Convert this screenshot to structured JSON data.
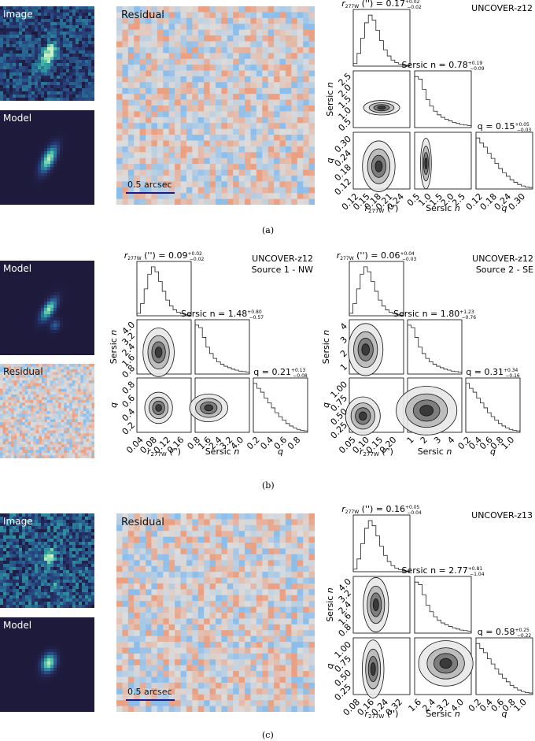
{
  "panels": [
    {
      "id": "a",
      "caption": "(a)",
      "image_label": "Image",
      "model_label": "Model",
      "residual_label": "Residual",
      "scalebar_label": "0.5 arcsec",
      "corner": {
        "object": "UNCOVER-z12",
        "source": "",
        "params": [
          {
            "name": "r277w",
            "summary_main": "r",
            "summary_sub": "277W",
            "summary_unit": " ('') = 0.17",
            "summary_plus": "+0.02",
            "summary_minus": "−0.02",
            "axis_label": "r277W ('')",
            "ticks": [
              "0.12",
              "0.15",
              "0.18",
              "0.21",
              "0.24"
            ]
          },
          {
            "name": "sersic",
            "summary_main": "Sersic n = 0.78",
            "summary_plus": "+0.19",
            "summary_minus": "−0.09",
            "axis_label": "Sersic n",
            "ticks": [
              "0.5",
              "1.0",
              "1.5",
              "2.0",
              "2.5"
            ]
          },
          {
            "name": "q",
            "summary_main": "q = 0.15",
            "summary_plus": "+0.05",
            "summary_minus": "−0.03",
            "axis_label": "q",
            "ticks": [
              "0.12",
              "0.18",
              "0.24",
              "0.30"
            ]
          }
        ],
        "y_labels": [
          "Sersic n",
          "q"
        ],
        "y_ticks_sersic": [
          "2.5",
          "2.0",
          "1.5",
          "1.0",
          "0.5"
        ],
        "y_ticks_q": [
          "0.30",
          "0.24",
          "0.18",
          "0.12"
        ]
      }
    },
    {
      "id": "b",
      "caption": "(b)",
      "model_label": "Model",
      "residual_label": "Residual",
      "corners": [
        {
          "object": "UNCOVER-z12",
          "source": "Source 1 - NW",
          "params": [
            {
              "name": "r277w",
              "summary_main": "r",
              "summary_sub": "277W",
              "summary_unit": " ('') = 0.09",
              "summary_plus": "+0.02",
              "summary_minus": "−0.02",
              "axis_label": "r277W ('')",
              "ticks": [
                "0.04",
                "0.08",
                "0.12",
                "0.16"
              ]
            },
            {
              "name": "sersic",
              "summary_main": "Sersic n = 1.48",
              "summary_plus": "+0.80",
              "summary_minus": "−0.57",
              "axis_label": "Sersic n",
              "ticks": [
                "0.8",
                "1.6",
                "2.4",
                "3.2",
                "4.0"
              ]
            },
            {
              "name": "q",
              "summary_main": "q = 0.21",
              "summary_plus": "+0.13",
              "summary_minus": "−0.08",
              "axis_label": "q",
              "ticks": [
                "0.2",
                "0.4",
                "0.6",
                "0.8"
              ]
            }
          ],
          "y_ticks_sersic": [
            "4.0",
            "3.2",
            "2.4",
            "1.6",
            "0.8"
          ],
          "y_ticks_q": [
            "0.8",
            "0.6",
            "0.4",
            "0.2"
          ]
        },
        {
          "object": "UNCOVER-z12",
          "source": "Source 2 - SE",
          "params": [
            {
              "name": "r277w",
              "summary_main": "r",
              "summary_sub": "277W",
              "summary_unit": " ('') = 0.06",
              "summary_plus": "+0.04",
              "summary_minus": "−0.03",
              "axis_label": "r277W ('')",
              "ticks": [
                "0.05",
                "0.10",
                "0.15",
                "0.20"
              ]
            },
            {
              "name": "sersic",
              "summary_main": "Sersic n = 1.80",
              "summary_plus": "+1.23",
              "summary_minus": "−0.76",
              "axis_label": "Sersic n",
              "ticks": [
                "1",
                "2",
                "3",
                "4"
              ]
            },
            {
              "name": "q",
              "summary_main": "q = 0.31",
              "summary_plus": "+0.34",
              "summary_minus": "−0.16",
              "axis_label": "q",
              "ticks": [
                "0.2",
                "0.4",
                "0.6",
                "0.8",
                "1.0"
              ]
            }
          ],
          "y_ticks_sersic": [
            "4",
            "3",
            "2",
            "1"
          ],
          "y_ticks_q": [
            "1.00",
            "0.75",
            "0.50",
            "0.25"
          ]
        }
      ],
      "y_labels": [
        "Sersic n",
        "q"
      ]
    },
    {
      "id": "c",
      "caption": "(c)",
      "image_label": "Image",
      "model_label": "Model",
      "residual_label": "Residual",
      "scalebar_label": "0.5 arcsec",
      "corner": {
        "object": "UNCOVER-z13",
        "source": "",
        "params": [
          {
            "name": "r277w",
            "summary_main": "r",
            "summary_sub": "277W",
            "summary_unit": " ('') = 0.16",
            "summary_plus": "+0.05",
            "summary_minus": "−0.04",
            "axis_label": "r277W ('')",
            "ticks": [
              "0.08",
              "0.16",
              "0.24",
              "0.32"
            ]
          },
          {
            "name": "sersic",
            "summary_main": "Sersic n = 2.77",
            "summary_plus": "+0.81",
            "summary_minus": "−1.04",
            "axis_label": "Sersic n",
            "ticks": [
              "1.6",
              "2.4",
              "3.2",
              "4.0"
            ]
          },
          {
            "name": "q",
            "summary_main": "q = 0.58",
            "summary_plus": "+0.25",
            "summary_minus": "−0.22",
            "axis_label": "q",
            "ticks": [
              "0.2",
              "0.4",
              "0.6",
              "0.8",
              "1.0"
            ]
          }
        ],
        "y_labels": [
          "Sersic n",
          "q"
        ],
        "y_ticks_sersic": [
          "4.0",
          "3.2",
          "2.4",
          "1.6",
          "0.8"
        ],
        "y_ticks_q": [
          "1.00",
          "0.75",
          "0.50",
          "0.25"
        ]
      }
    }
  ],
  "colors": {
    "image_bg": "#1e1a3c",
    "model_bg": "#2a2456",
    "residual_red": "#f0a58a",
    "residual_blue": "#9cbde6",
    "residual_mid": "#dcdcdc",
    "contour": "#222222"
  }
}
